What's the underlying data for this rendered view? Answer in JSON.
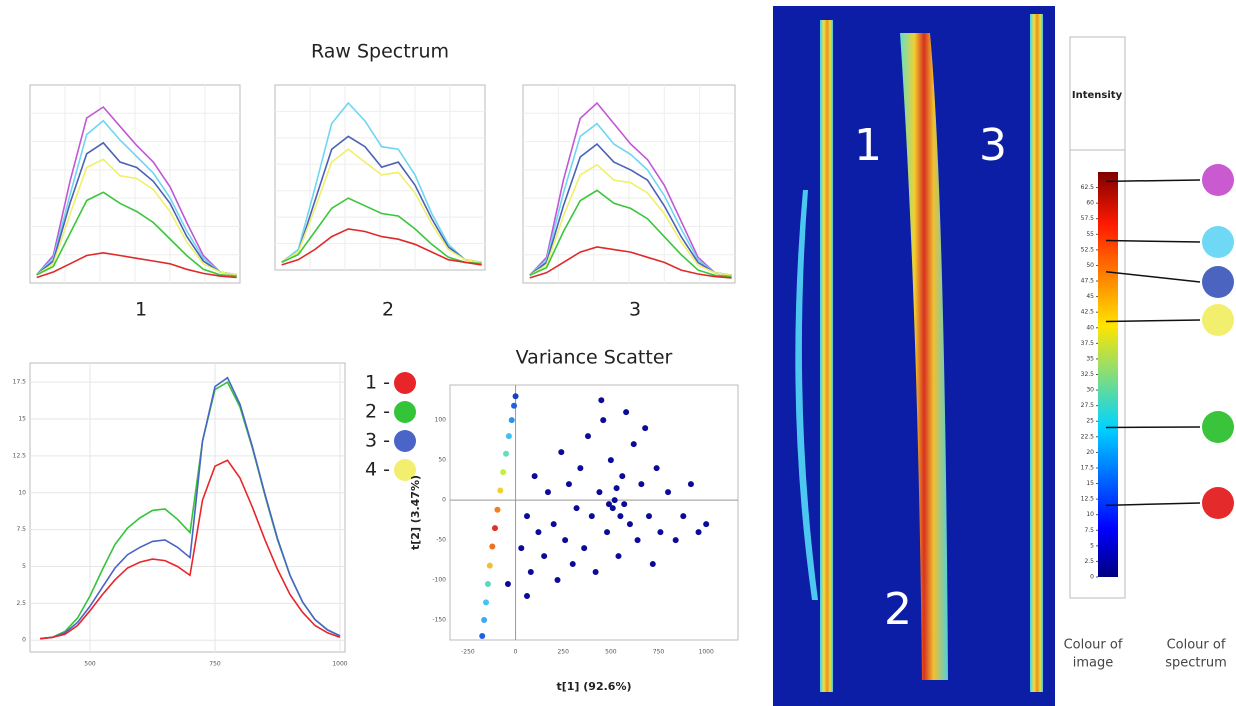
{
  "raw_title": "Raw Spectrum",
  "chart_data": [
    {
      "type": "line",
      "caption": "1",
      "x": [
        400,
        450,
        500,
        550,
        600,
        650,
        700,
        750,
        800,
        850,
        900,
        950,
        1000
      ],
      "xlim": [
        380,
        1010
      ],
      "ylim": [
        -2,
        70
      ],
      "series": [
        {
          "color": "#c257d6",
          "values": [
            1,
            8,
            35,
            58,
            62,
            55,
            48,
            42,
            33,
            20,
            8,
            2,
            1
          ]
        },
        {
          "color": "#6fd6f2",
          "values": [
            1,
            7,
            30,
            52,
            57,
            50,
            44,
            38,
            29,
            17,
            7,
            2,
            1
          ]
        },
        {
          "color": "#4b62b6",
          "values": [
            1,
            6,
            27,
            45,
            49,
            42,
            40,
            35,
            27,
            15,
            6,
            2,
            1
          ]
        },
        {
          "color": "#eef06a",
          "values": [
            1,
            5,
            23,
            40,
            43,
            37,
            36,
            32,
            24,
            13,
            5,
            2,
            1
          ]
        },
        {
          "color": "#3cc63c",
          "values": [
            1,
            4,
            16,
            28,
            31,
            27,
            24,
            20,
            14,
            8,
            3,
            1,
            0.5
          ]
        },
        {
          "color": "#e02a2a",
          "values": [
            0,
            2,
            5,
            8,
            9,
            8,
            7,
            6,
            5,
            3,
            1.5,
            0.5,
            0
          ]
        }
      ]
    },
    {
      "type": "line",
      "caption": "2",
      "x": [
        400,
        450,
        500,
        550,
        600,
        650,
        700,
        750,
        800,
        850,
        900,
        950,
        1000
      ],
      "xlim": [
        380,
        1010
      ],
      "ylim": [
        -2,
        70
      ],
      "series": [
        {
          "color": "#6fd6f2",
          "values": [
            1,
            6,
            30,
            55,
            63,
            56,
            46,
            45,
            35,
            20,
            8,
            2,
            1
          ]
        },
        {
          "color": "#4b62b6",
          "values": [
            1,
            5,
            25,
            45,
            50,
            46,
            38,
            40,
            31,
            18,
            7,
            2,
            1
          ]
        },
        {
          "color": "#eef06a",
          "values": [
            1,
            5,
            22,
            40,
            45,
            40,
            35,
            36,
            28,
            16,
            6,
            2,
            1
          ]
        },
        {
          "color": "#3cc63c",
          "values": [
            1,
            4,
            13,
            22,
            26,
            23,
            20,
            19,
            14,
            8,
            3,
            1,
            0.5
          ]
        },
        {
          "color": "#e02a2a",
          "values": [
            0,
            2,
            6,
            11,
            14,
            13,
            11,
            10,
            8,
            5,
            2,
            1,
            0
          ]
        }
      ]
    },
    {
      "type": "line",
      "caption": "3",
      "x": [
        400,
        450,
        500,
        550,
        600,
        650,
        700,
        750,
        800,
        850,
        900,
        950,
        1000
      ],
      "xlim": [
        380,
        1010
      ],
      "ylim": [
        -2,
        75
      ],
      "series": [
        {
          "color": "#c257d6",
          "values": [
            1,
            8,
            38,
            62,
            68,
            60,
            52,
            46,
            36,
            22,
            8,
            2,
            1
          ]
        },
        {
          "color": "#6fd6f2",
          "values": [
            1,
            7,
            33,
            55,
            60,
            52,
            48,
            42,
            32,
            19,
            7,
            2,
            1
          ]
        },
        {
          "color": "#4b62b6",
          "values": [
            1,
            6,
            28,
            47,
            52,
            45,
            42,
            38,
            28,
            16,
            6,
            2,
            1
          ]
        },
        {
          "color": "#eef06a",
          "values": [
            1,
            5,
            24,
            40,
            44,
            38,
            37,
            33,
            25,
            14,
            5,
            2,
            1
          ]
        },
        {
          "color": "#3cc63c",
          "values": [
            1,
            4,
            18,
            30,
            34,
            29,
            27,
            23,
            16,
            9,
            3,
            1,
            0.5
          ]
        },
        {
          "color": "#e02a2a",
          "values": [
            0,
            2,
            6,
            10,
            12,
            11,
            10,
            8,
            6,
            3,
            1.5,
            0.5,
            0
          ]
        }
      ]
    },
    {
      "type": "line",
      "x": [
        400,
        425,
        450,
        475,
        500,
        525,
        550,
        575,
        600,
        625,
        650,
        675,
        700,
        725,
        750,
        775,
        800,
        825,
        850,
        875,
        900,
        925,
        950,
        975,
        1000
      ],
      "xlim": [
        380,
        1010
      ],
      "ylim": [
        -0.8,
        18.8
      ],
      "xticks": [
        500,
        750,
        1000
      ],
      "yticks": [
        0,
        2.5,
        5,
        7.5,
        10,
        12.5,
        15,
        17.5
      ],
      "grid": true,
      "series": [
        {
          "color": "#33c43a",
          "values": [
            0.1,
            0.2,
            0.6,
            1.5,
            3.0,
            4.8,
            6.5,
            7.6,
            8.3,
            8.8,
            8.9,
            8.2,
            7.3,
            13.5,
            17.0,
            17.5,
            15.8,
            13.0,
            9.8,
            6.8,
            4.4,
            2.6,
            1.4,
            0.7,
            0.3
          ]
        },
        {
          "color": "#4a64c8",
          "values": [
            0.1,
            0.2,
            0.5,
            1.2,
            2.3,
            3.6,
            4.9,
            5.8,
            6.3,
            6.7,
            6.8,
            6.3,
            5.6,
            13.5,
            17.2,
            17.8,
            16.0,
            13.1,
            9.9,
            6.9,
            4.4,
            2.6,
            1.4,
            0.7,
            0.3
          ]
        },
        {
          "color": "#e8262a",
          "values": [
            0.1,
            0.2,
            0.4,
            1.0,
            2.0,
            3.1,
            4.1,
            4.9,
            5.3,
            5.5,
            5.4,
            5.0,
            4.4,
            9.5,
            11.8,
            12.2,
            11.0,
            9.0,
            6.8,
            4.8,
            3.1,
            1.9,
            1.0,
            0.5,
            0.2
          ]
        }
      ],
      "legend": [
        {
          "label": "1 -",
          "color": "#e8262a"
        },
        {
          "label": "2 -",
          "color": "#33c43a"
        },
        {
          "label": "3 -",
          "color": "#4a64c8"
        },
        {
          "label": "4 -",
          "color": "#f2ef6e"
        }
      ]
    },
    {
      "type": "scatter",
      "title": "Variance Scatter",
      "xlabel": "t[1] (92.6%)",
      "ylabel": "t[2] (3.47%)",
      "xlim": [
        -344,
        1167
      ],
      "ylim": [
        -175,
        144
      ],
      "xticks": [
        -250,
        0,
        250,
        500,
        750,
        1000
      ],
      "yticks": [
        -150,
        -100,
        -50,
        0,
        50,
        100
      ],
      "series": [
        {
          "x": [
            30,
            60,
            80,
            100,
            120,
            150,
            170,
            200,
            220,
            240,
            260,
            280,
            300,
            320,
            340,
            360,
            380,
            400,
            420,
            440,
            460,
            480,
            500,
            510,
            520,
            540,
            560,
            580,
            600,
            620,
            640,
            660,
            680,
            700,
            720,
            740,
            760,
            800,
            840,
            880,
            920,
            960,
            1000,
            550,
            530,
            490,
            570,
            60,
            -40,
            450
          ],
          "values": [
            -60,
            -20,
            -90,
            30,
            -40,
            -70,
            10,
            -30,
            -100,
            60,
            -50,
            20,
            -80,
            -10,
            40,
            -60,
            80,
            -20,
            -90,
            10,
            100,
            -40,
            50,
            -10,
            0,
            -70,
            30,
            110,
            -30,
            70,
            -50,
            20,
            90,
            -20,
            -80,
            40,
            -40,
            10,
            -50,
            -20,
            20,
            -40,
            -30,
            -20,
            15,
            -5,
            -5,
            -120,
            -105,
            125
          ],
          "color": "#0b0b9a"
        },
        {
          "x": [
            -175,
            -165,
            -155,
            -145,
            -135,
            -122,
            -108,
            -95,
            -80,
            -65,
            -50,
            -35,
            -20,
            -8,
            0
          ],
          "values": [
            -170,
            -150,
            -128,
            -105,
            -82,
            -58,
            -35,
            -12,
            12,
            35,
            58,
            80,
            100,
            118,
            130
          ],
          "colors": [
            "#2060e0",
            "#3fa8f0",
            "#3fc7f0",
            "#5ad8c0",
            "#f0c030",
            "#f07020",
            "#e03020",
            "#f08020",
            "#f0d030",
            "#c0f040",
            "#60e0c0",
            "#40c0f0",
            "#3090f0",
            "#2060e0",
            "#1840c0"
          ]
        }
      ]
    }
  ],
  "image": {
    "labels": [
      "1",
      "2",
      "3"
    ]
  },
  "colorbar": {
    "title": "Intensity",
    "lim": [
      0,
      65
    ],
    "ticks": [
      0,
      2.5,
      5,
      7.5,
      10,
      12.5,
      15,
      17.5,
      20,
      22.5,
      25,
      27.5,
      30,
      32.5,
      35,
      37.5,
      40,
      42.5,
      45,
      47.5,
      50,
      52.5,
      55,
      57.5,
      60,
      62.5
    ],
    "markers": [
      {
        "value": 63.5,
        "color": "#c95ad0"
      },
      {
        "value": 54,
        "color": "#6fd8f4"
      },
      {
        "value": 49,
        "color": "#4a64c0"
      },
      {
        "value": 41,
        "color": "#f2ef6e"
      },
      {
        "value": 24,
        "color": "#3ac43c"
      },
      {
        "value": 11.5,
        "color": "#e42a2a"
      }
    ],
    "footer": [
      [
        "Colour of",
        "image"
      ],
      [
        "Colour of",
        "spectrum"
      ]
    ]
  }
}
